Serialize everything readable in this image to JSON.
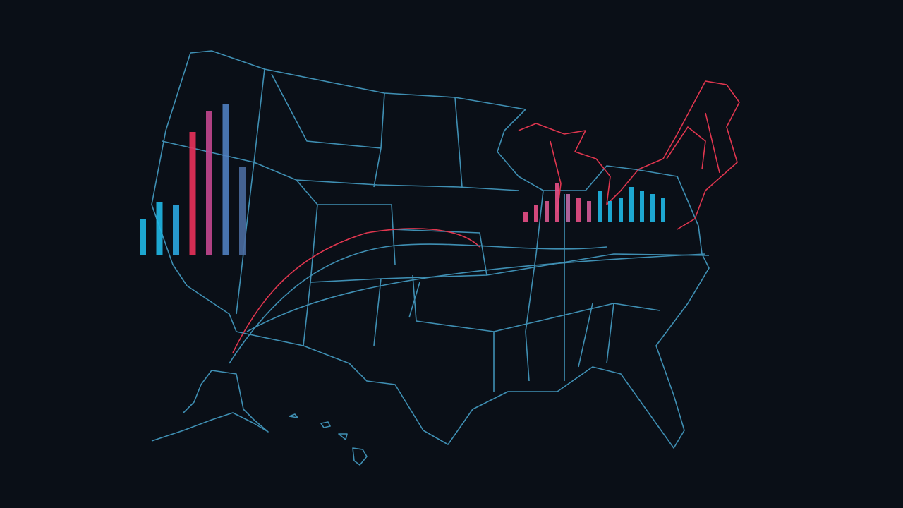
{
  "map": {
    "bar_groups": [
      {
        "values": [
          52,
          75,
          72,
          175,
          205,
          215,
          125
        ],
        "colors": [
          "#1fb8e6",
          "#1fb8e6",
          "#2aa7e0",
          "#e8315a",
          "#c2478f",
          "#4f7fc0",
          "#4a6c9e"
        ]
      },
      {
        "values": [
          15,
          25,
          30,
          55,
          40,
          35,
          30,
          45,
          30,
          35,
          50,
          45,
          40,
          35
        ],
        "colors": [
          "#e84f86",
          "#e84f86",
          "#d9588f",
          "#e84f86",
          "#c06aa6",
          "#e84f86",
          "#d35b98",
          "#1fb8e6",
          "#1fb8e6",
          "#1fb8e6",
          "#1fb8e6",
          "#1fb8e6",
          "#1fb8e6",
          "#1fb8e6"
        ]
      }
    ]
  }
}
